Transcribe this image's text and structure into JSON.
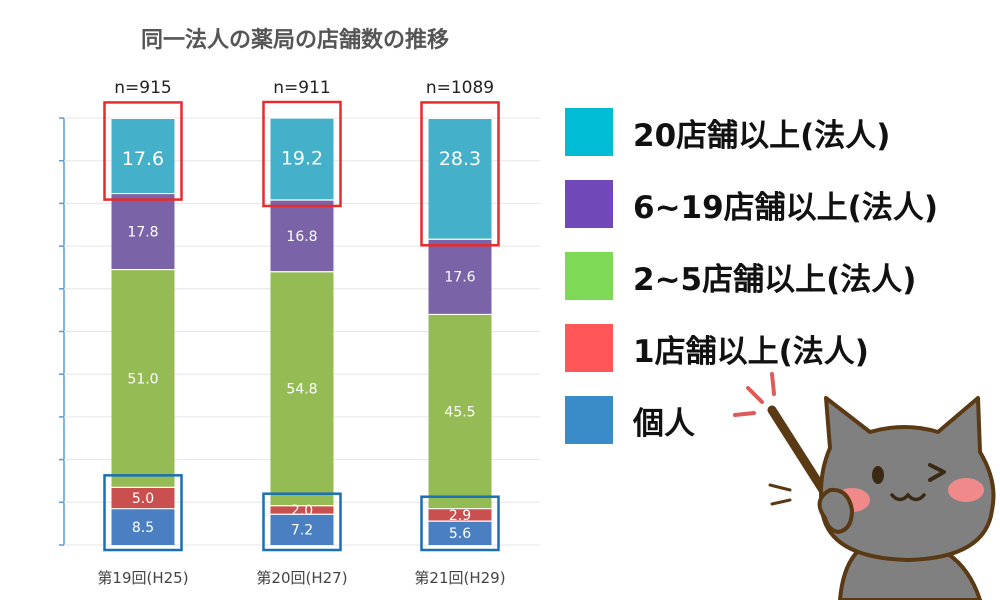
{
  "chart_data": {
    "type": "bar",
    "stacked": true,
    "title": "同一法人の薬局の店舗数の推移",
    "categories": [
      "第19回(H25)",
      "第20回(H27)",
      "第21回(H29)"
    ],
    "sample_sizes": [
      "n=915",
      "n=911",
      "n=1089"
    ],
    "ylim": [
      0,
      100
    ],
    "grid": false,
    "legend_position": "right",
    "series": [
      {
        "name": "個人",
        "values": [
          8.5,
          7.2,
          5.6
        ],
        "labels": [
          "8.5",
          "7.2",
          "5.6"
        ],
        "color": "#4a7fc1"
      },
      {
        "name": "1店舗以上(法人)",
        "values": [
          5.0,
          2.0,
          2.9
        ],
        "labels": [
          "5.0",
          "2.0",
          "2.9"
        ],
        "color": "#c9504f"
      },
      {
        "name": "2~5店舗以上(法人)",
        "values": [
          51.0,
          54.8,
          45.5
        ],
        "labels": [
          "51.0",
          "54.8",
          "45.5"
        ],
        "color": "#95bb55"
      },
      {
        "name": "6~19店舗以上(法人)",
        "values": [
          17.8,
          16.8,
          17.6
        ],
        "labels": [
          "17.8",
          "16.8",
          "17.6"
        ],
        "color": "#7b63a7"
      },
      {
        "name": "20店舗以上(法人)",
        "values": [
          17.6,
          19.2,
          28.3
        ],
        "labels": [
          "17.6",
          "19.2",
          "28.3"
        ],
        "color": "#44b0c9"
      }
    ]
  },
  "legend": {
    "items": [
      {
        "label": "20店舗以上(法人)",
        "color": "#00bcd4"
      },
      {
        "label": "6~19店舗以上(法人)",
        "color": "#7048b8"
      },
      {
        "label": "2~5店舗以上(法人)",
        "color": "#7ed957"
      },
      {
        "label": "1店舗以上(法人)",
        "color": "#ff5757"
      },
      {
        "label": "個人",
        "color": "#3a8cc8"
      }
    ]
  },
  "highlight_colors": {
    "top": "#e52b2b",
    "bottom": "#1a6fb5"
  },
  "mascot": {
    "name": "cat-pointer",
    "body_color": "#808080",
    "outline_color": "#5a3a14",
    "stick_color": "#5a3a14"
  }
}
